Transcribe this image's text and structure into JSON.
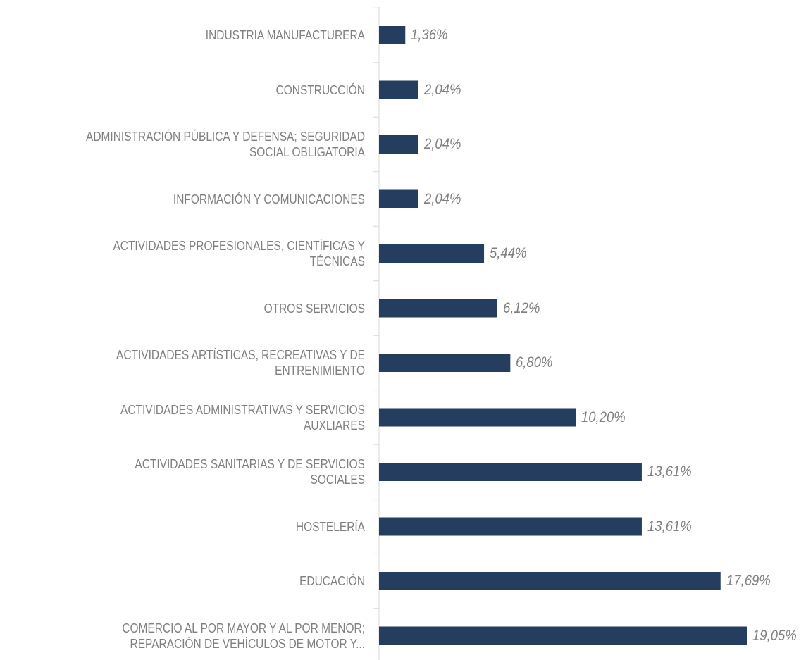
{
  "chart_data": {
    "type": "bar",
    "orientation": "horizontal",
    "color": "#253d5e",
    "categories": [
      "INDUSTRIA MANUFACTURERA",
      "CONSTRUCCIÓN",
      "ADMINISTRACIÓN PÚBLICA Y DEFENSA; SEGURIDAD\nSOCIAL OBLIGATORIA",
      "INFORMACIÓN Y COMUNICACIONES",
      "ACTIVIDADES PROFESIONALES, CIENTÍFICAS Y\nTÉCNICAS",
      "OTROS SERVICIOS",
      "ACTIVIDADES ARTÍSTICAS, RECREATIVAS Y DE\nENTRENIMIENTO",
      "ACTIVIDADES ADMINISTRATIVAS Y SERVICIOS\nAUXLIARES",
      "ACTIVIDADES SANITARIAS Y DE SERVICIOS\nSOCIALES",
      "HOSTELERÍA",
      "EDUCACIÓN",
      "COMERCIO AL POR MAYOR Y AL POR MENOR;\nREPARACIÓN DE VEHÍCULOS DE MOTOR Y..."
    ],
    "values": [
      1.36,
      2.04,
      2.04,
      2.04,
      5.44,
      6.12,
      6.8,
      10.2,
      13.61,
      13.61,
      17.69,
      19.05
    ],
    "value_labels": [
      "1,36%",
      "2,04%",
      "2,04%",
      "2,04%",
      "5,44%",
      "6,12%",
      "6,80%",
      "10,20%",
      "13,61%",
      "13,61%",
      "17,69%",
      "19,05%"
    ]
  }
}
